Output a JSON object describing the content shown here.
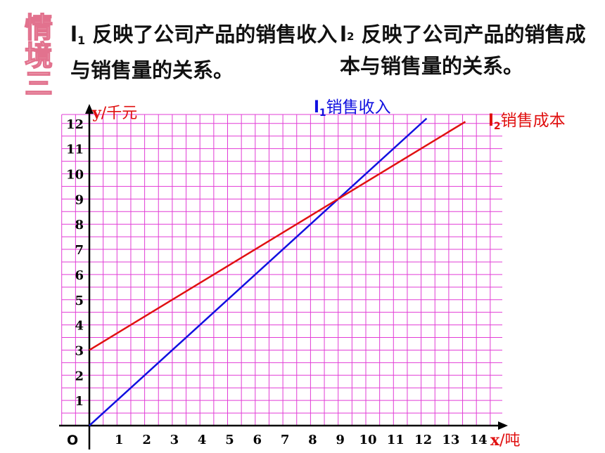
{
  "side_title": [
    "情",
    "境",
    "三"
  ],
  "desc1": {
    "sym": "l",
    "sub": "1",
    "text": " 反映了公司产品的销售收入与销售量的关系。"
  },
  "desc2": {
    "sym": "l",
    "sub": "2",
    "text": " 反映了公司产品的销售成本与销售量的关系。"
  },
  "colors": {
    "grid": "#e23cd6",
    "line1": "#1010e0",
    "line2": "#e01010",
    "axis": "#000000",
    "title_pink": "#e2728e"
  },
  "chart_data": {
    "type": "line",
    "origin_label": "O",
    "xlabel": {
      "var": "x",
      "unit": "/吨"
    },
    "ylabel": {
      "var": "y",
      "unit": "/千元"
    },
    "x_ticks": [
      "1",
      "2",
      "3",
      "4",
      "5",
      "6",
      "7",
      "8",
      "9",
      "10",
      "11",
      "12",
      "13",
      "14"
    ],
    "y_ticks": [
      "1",
      "2",
      "3",
      "4",
      "5",
      "6",
      "7",
      "8",
      "9",
      "10",
      "11",
      "12"
    ],
    "xlim": [
      0,
      15
    ],
    "ylim": [
      0,
      12.5
    ],
    "grid": true,
    "series": [
      {
        "id": "l1",
        "name_sym": "l",
        "name_sub": "1",
        "name": "销售收入",
        "color": "line1",
        "x": [
          0,
          12.2
        ],
        "y": [
          0,
          12.2
        ]
      },
      {
        "id": "l2",
        "name_sym": "l",
        "name_sub": "2",
        "name": "销售成本",
        "color": "line2",
        "x": [
          0,
          13.6
        ],
        "y": [
          3,
          12.07
        ]
      }
    ]
  }
}
